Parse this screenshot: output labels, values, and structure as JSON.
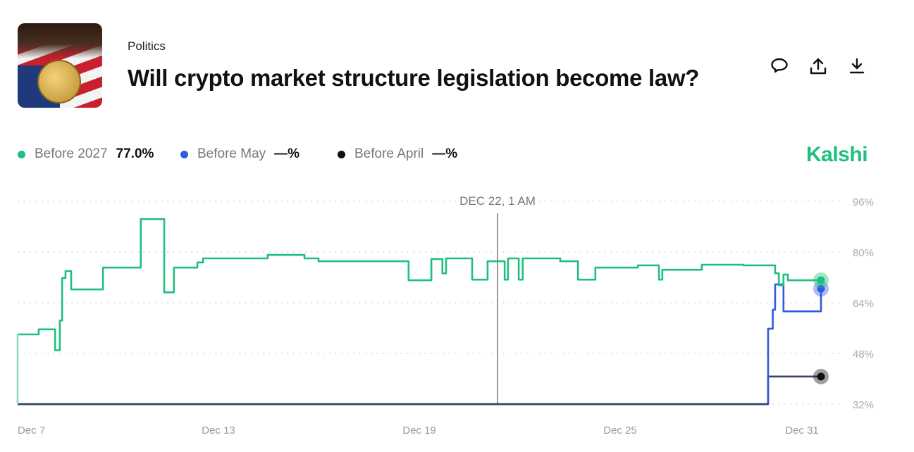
{
  "header": {
    "category": "Politics",
    "title": "Will crypto market structure legislation become law?",
    "icons": [
      "comment-icon",
      "share-icon",
      "download-icon"
    ]
  },
  "legend": [
    {
      "name": "Before 2027",
      "value": "77.0%",
      "color": "#1fbf7e"
    },
    {
      "name": "Before May",
      "value": "—%",
      "color": "#2f5be0"
    },
    {
      "name": "Before April",
      "value": "—%",
      "color": "#111111"
    }
  ],
  "brand": "Kalshi",
  "chart_data": {
    "type": "line",
    "hover_label": "DEC 22, 1 AM",
    "x_unit": "day of December",
    "xlim": [
      7,
      31
    ],
    "ylim": [
      32,
      96
    ],
    "yticks": [
      96,
      80,
      64,
      48,
      32
    ],
    "ytick_labels": [
      "96%",
      "80%",
      "64%",
      "48%",
      "32%"
    ],
    "xtick_labels": [
      "Dec 7",
      "Dec 13",
      "Dec 19",
      "Dec 25",
      "Dec 31"
    ],
    "xticks": [
      7,
      13,
      19,
      25,
      31
    ],
    "grid": true,
    "series": [
      {
        "name": "Before 2027",
        "color": "#1fbf7e",
        "x": [
          7.0,
          7.63,
          8.12,
          8.26,
          8.33,
          8.43,
          8.6,
          9.55,
          10.68,
          11.38,
          11.67,
          12.37,
          12.54,
          14.47,
          15.57,
          15.99,
          18.68,
          19.36,
          19.69,
          19.8,
          20.58,
          21.04,
          21.55,
          21.65,
          21.97,
          22.09,
          23.21,
          23.74,
          24.26,
          25.53,
          26.16,
          26.26,
          27.44,
          28.68,
          29.63,
          29.74,
          29.88,
          30.01,
          31.0
        ],
        "y": [
          54,
          55.6,
          49,
          58.4,
          71.8,
          74,
          68.2,
          75.1,
          90.4,
          67.3,
          75.1,
          76.7,
          78,
          79.1,
          78,
          77.1,
          71.1,
          77.8,
          73.3,
          78,
          71.3,
          77.1,
          71.3,
          78,
          71.3,
          78,
          77.1,
          71.3,
          75.1,
          75.8,
          71.3,
          74.4,
          76,
          75.8,
          73.3,
          69.5,
          72.9,
          71.1,
          71.1
        ]
      },
      {
        "name": "Before May",
        "color": "#2f5be0",
        "x": [
          7.0,
          29.42,
          29.56,
          29.63,
          29.88,
          31.0
        ],
        "y": [
          32,
          55.8,
          61.8,
          69.8,
          61.3,
          68.4
        ]
      },
      {
        "name": "Before April",
        "color": "#111111",
        "x": [
          7.0,
          29.42,
          31.0
        ],
        "y": [
          32,
          40.7,
          40.7
        ]
      }
    ]
  }
}
